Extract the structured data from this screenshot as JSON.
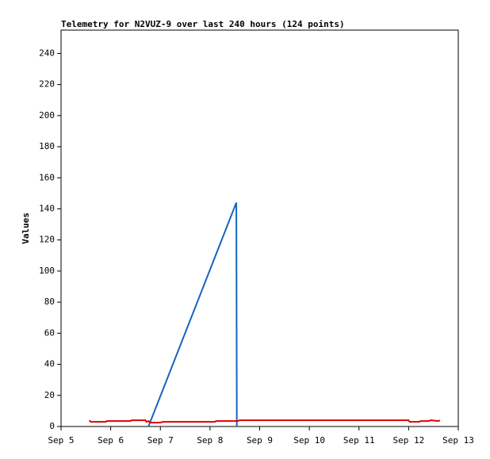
{
  "chart_data": {
    "type": "line",
    "title": "Telemetry for N2VUZ-9 over last 240 hours (124 points)",
    "ylabel": "Values",
    "xlim": [
      5,
      13
    ],
    "xticks": [
      {
        "value": 5,
        "label": "Sep 5"
      },
      {
        "value": 6,
        "label": "Sep 6"
      },
      {
        "value": 7,
        "label": "Sep 7"
      },
      {
        "value": 8,
        "label": "Sep 8"
      },
      {
        "value": 9,
        "label": "Sep 9"
      },
      {
        "value": 10,
        "label": "Sep 10"
      },
      {
        "value": 11,
        "label": "Sep 11"
      },
      {
        "value": 12,
        "label": "Sep 12"
      },
      {
        "value": 13,
        "label": "Sep 13"
      }
    ],
    "ylim": [
      0,
      255
    ],
    "yticks": [
      0,
      20,
      40,
      60,
      80,
      100,
      120,
      140,
      160,
      180,
      200,
      220,
      240
    ],
    "series": [
      {
        "color": "#1565c0",
        "x": [
          6.76,
          8.53,
          8.54
        ],
        "values": [
          0,
          144,
          0
        ]
      },
      {
        "color": "#e00000",
        "x": [
          5.57,
          5.6,
          5.9,
          5.92,
          6.4,
          6.42,
          6.7,
          6.72,
          6.76,
          6.8,
          7.0,
          7.05,
          8.1,
          8.12,
          8.55,
          8.6,
          12.0,
          12.02,
          12.2,
          12.25,
          12.4,
          12.45,
          12.6,
          12.63
        ],
        "values": [
          4,
          3,
          3,
          3.5,
          3.5,
          4,
          4,
          3,
          3.5,
          2.5,
          2.5,
          3,
          3,
          3.5,
          3.5,
          4,
          4,
          3,
          3,
          3.5,
          3.5,
          4,
          3.5,
          4
        ]
      }
    ]
  }
}
